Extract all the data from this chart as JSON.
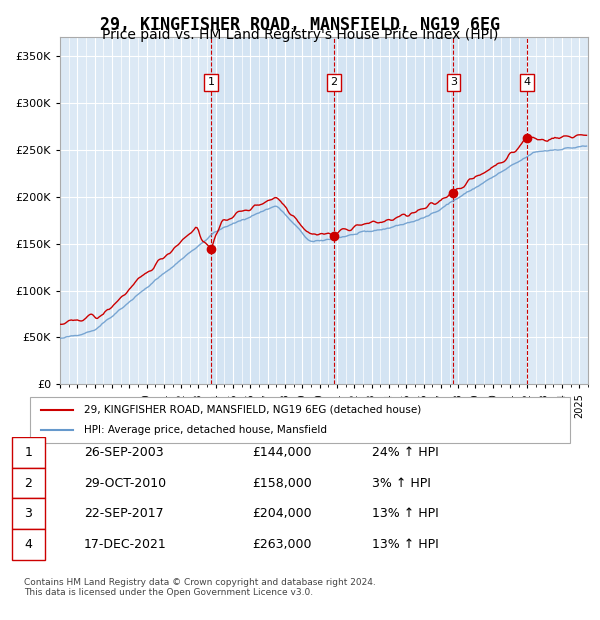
{
  "title": "29, KINGFISHER ROAD, MANSFIELD, NG19 6EG",
  "subtitle": "Price paid vs. HM Land Registry's House Price Index (HPI)",
  "title_fontsize": 12,
  "subtitle_fontsize": 10,
  "ylabel": "",
  "xlabel": "",
  "ylim": [
    0,
    370000
  ],
  "yticks": [
    0,
    50000,
    100000,
    150000,
    200000,
    250000,
    300000,
    350000
  ],
  "ytick_labels": [
    "£0",
    "£50K",
    "£100K",
    "£150K",
    "£200K",
    "£250K",
    "£300K",
    "£350K"
  ],
  "background_color": "#dce9f5",
  "plot_bg_color": "#dce9f5",
  "grid_color": "#ffffff",
  "hpi_color": "#6699cc",
  "price_color": "#cc0000",
  "sale_marker_color": "#cc0000",
  "vline_color": "#cc0000",
  "annotations": [
    {
      "num": 1,
      "date_str": "26-SEP-2003",
      "price": 144000,
      "pct": "24%",
      "direction": "↑"
    },
    {
      "num": 2,
      "date_str": "29-OCT-2010",
      "price": 158000,
      "pct": "3%",
      "direction": "↑"
    },
    {
      "num": 3,
      "date_str": "22-SEP-2017",
      "price": 204000,
      "pct": "13%",
      "direction": "↑"
    },
    {
      "num": 4,
      "date_str": "17-DEC-2021",
      "price": 263000,
      "pct": "13%",
      "direction": "↑"
    }
  ],
  "sale_dates_decimal": [
    2003.733,
    2010.831,
    2017.726,
    2021.958
  ],
  "legend_line1": "29, KINGFISHER ROAD, MANSFIELD, NG19 6EG (detached house)",
  "legend_line2": "HPI: Average price, detached house, Mansfield",
  "footer": "Contains HM Land Registry data © Crown copyright and database right 2024.\nThis data is licensed under the Open Government Licence v3.0.",
  "xmin": 1995.0,
  "xmax": 2025.5
}
